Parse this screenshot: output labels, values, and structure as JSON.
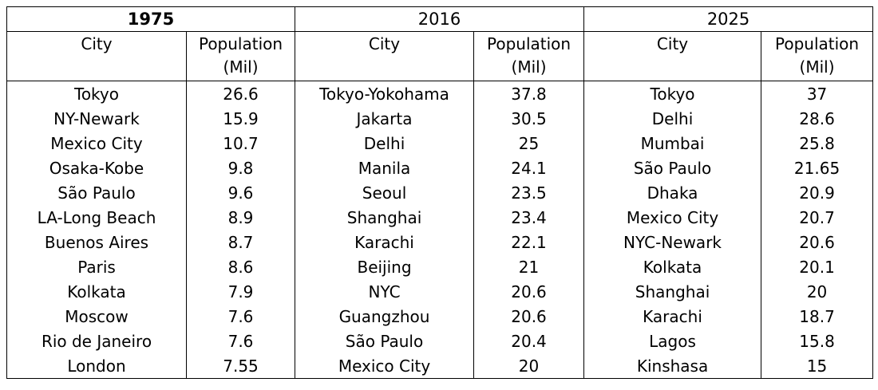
{
  "groups": [
    {
      "year": "1975",
      "bold": true
    },
    {
      "year": "2016",
      "bold": false
    },
    {
      "year": "2025",
      "bold": false
    }
  ],
  "headers": {
    "city": "City",
    "population": "Population (Mil)"
  },
  "rows": [
    [
      [
        "Tokyo",
        "26.6"
      ],
      [
        "Tokyo-Yokohama",
        "37.8"
      ],
      [
        "Tokyo",
        "37"
      ]
    ],
    [
      [
        "NY-Newark",
        "15.9"
      ],
      [
        "Jakarta",
        "30.5"
      ],
      [
        "Delhi",
        "28.6"
      ]
    ],
    [
      [
        "Mexico City",
        "10.7"
      ],
      [
        "Delhi",
        "25"
      ],
      [
        "Mumbai",
        "25.8"
      ]
    ],
    [
      [
        "Osaka-Kobe",
        "9.8"
      ],
      [
        "Manila",
        "24.1"
      ],
      [
        "São Paulo",
        "21.65"
      ]
    ],
    [
      [
        "São Paulo",
        "9.6"
      ],
      [
        "Seoul",
        "23.5"
      ],
      [
        "Dhaka",
        "20.9"
      ]
    ],
    [
      [
        "LA-Long Beach",
        "8.9"
      ],
      [
        "Shanghai",
        "23.4"
      ],
      [
        "Mexico City",
        "20.7"
      ]
    ],
    [
      [
        "Buenos Aires",
        "8.7"
      ],
      [
        "Karachi",
        "22.1"
      ],
      [
        "NYC-Newark",
        "20.6"
      ]
    ],
    [
      [
        "Paris",
        "8.6"
      ],
      [
        "Beijing",
        "21"
      ],
      [
        "Kolkata",
        "20.1"
      ]
    ],
    [
      [
        "Kolkata",
        "7.9"
      ],
      [
        "NYC",
        "20.6"
      ],
      [
        "Shanghai",
        "20"
      ]
    ],
    [
      [
        "Moscow",
        "7.6"
      ],
      [
        "Guangzhou",
        "20.6"
      ],
      [
        "Karachi",
        "18.7"
      ]
    ],
    [
      [
        "Rio de Janeiro",
        "7.6"
      ],
      [
        "São Paulo",
        "20.4"
      ],
      [
        "Lagos",
        "15.8"
      ]
    ],
    [
      [
        "London",
        "7.55"
      ],
      [
        "Mexico City",
        "20"
      ],
      [
        "Kinshasa",
        "15"
      ]
    ]
  ],
  "chart_data": {
    "type": "table",
    "columns": [
      "1975 City",
      "1975 Population (Mil)",
      "2016 City",
      "2016 Population (Mil)",
      "2025 City",
      "2025 Population (Mil)"
    ],
    "values": [
      [
        "Tokyo",
        26.6,
        "Tokyo-Yokohama",
        37.8,
        "Tokyo",
        37
      ],
      [
        "NY-Newark",
        15.9,
        "Jakarta",
        30.5,
        "Delhi",
        28.6
      ],
      [
        "Mexico City",
        10.7,
        "Delhi",
        25,
        "Mumbai",
        25.8
      ],
      [
        "Osaka-Kobe",
        9.8,
        "Manila",
        24.1,
        "São Paulo",
        21.65
      ],
      [
        "São Paulo",
        9.6,
        "Seoul",
        23.5,
        "Dhaka",
        20.9
      ],
      [
        "LA-Long Beach",
        8.9,
        "Shanghai",
        23.4,
        "Mexico City",
        20.7
      ],
      [
        "Buenos Aires",
        8.7,
        "Karachi",
        22.1,
        "NYC-Newark",
        20.6
      ],
      [
        "Paris",
        8.6,
        "Beijing",
        21,
        "Kolkata",
        20.1
      ],
      [
        "Kolkata",
        7.9,
        "NYC",
        20.6,
        "Shanghai",
        20
      ],
      [
        "Moscow",
        7.6,
        "Guangzhou",
        20.6,
        "Karachi",
        18.7
      ],
      [
        "Rio de Janeiro",
        7.6,
        "São Paulo",
        20.4,
        "Lagos",
        15.8
      ],
      [
        "London",
        7.55,
        "Mexico City",
        20,
        "Kinshasa",
        15
      ]
    ]
  }
}
